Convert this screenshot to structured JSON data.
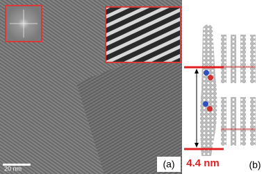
{
  "panel_a": {
    "label": "(a)",
    "scale_bar": "20 nm"
  },
  "panel_b": {
    "label": "(b)",
    "dimension": "4.4 nm"
  }
}
